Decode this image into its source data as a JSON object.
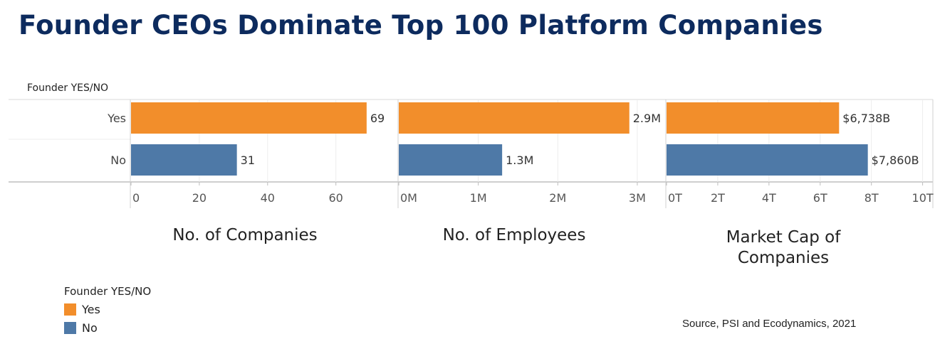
{
  "title": "Founder CEOs Dominate Top 100 Platform Companies",
  "row_header": "Founder YES/NO",
  "source": "Source, PSI and Ecodynamics, 2021",
  "legend": {
    "title": "Founder YES/NO",
    "items": [
      {
        "label": "Yes",
        "color": "#f28e2b"
      },
      {
        "label": "No",
        "color": "#4e79a7"
      }
    ]
  },
  "chart_data": [
    {
      "type": "bar",
      "orientation": "horizontal",
      "title": "No. of Companies",
      "categories": [
        "Yes",
        "No"
      ],
      "values": [
        69,
        31
      ],
      "value_labels": [
        "69",
        "31"
      ],
      "xlim": [
        0,
        78
      ],
      "ticks": [
        0,
        20,
        40,
        60
      ],
      "tick_labels": [
        "0",
        "20",
        "40",
        "60"
      ],
      "colors": [
        "#f28e2b",
        "#4e79a7"
      ],
      "grid": true
    },
    {
      "type": "bar",
      "orientation": "horizontal",
      "title": "No. of Employees",
      "categories": [
        "Yes",
        "No"
      ],
      "values": [
        2.9,
        1.3
      ],
      "value_labels": [
        "2.9M",
        "1.3M"
      ],
      "xlim": [
        0,
        3.35
      ],
      "ticks": [
        0,
        1,
        2,
        3
      ],
      "tick_labels": [
        "0M",
        "1M",
        "2M",
        "3M"
      ],
      "colors": [
        "#f28e2b",
        "#4e79a7"
      ],
      "grid": true
    },
    {
      "type": "bar",
      "orientation": "horizontal",
      "title": "Market Cap of Companies",
      "categories": [
        "Yes",
        "No"
      ],
      "values": [
        6.738,
        7.86
      ],
      "value_labels": [
        "$6,738B",
        "$7,860B"
      ],
      "xlim": [
        0,
        10.4
      ],
      "ticks": [
        0,
        2,
        4,
        6,
        8,
        10
      ],
      "tick_labels": [
        "0T",
        "2T",
        "4T",
        "6T",
        "8T",
        "10T"
      ],
      "colors": [
        "#f28e2b",
        "#4e79a7"
      ],
      "grid": true
    }
  ]
}
